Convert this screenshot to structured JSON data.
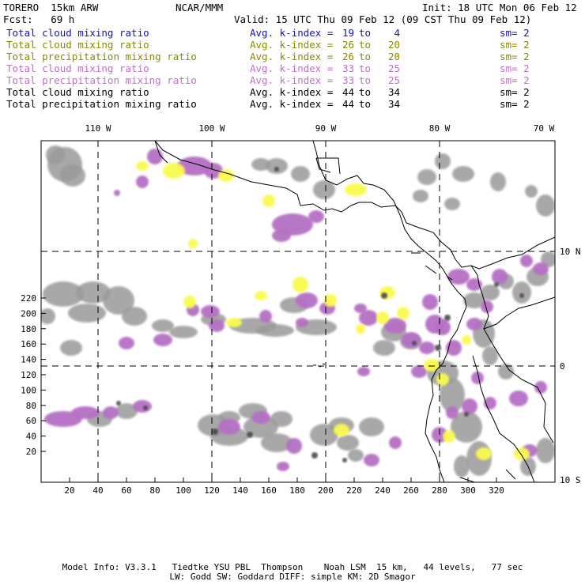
{
  "header": {
    "model": "TORERO  15km ARW",
    "center": "NCAR/MMM",
    "init": "Init: 18 UTC Mon 06 Feb 12",
    "fcst": "Fcst:   69 h",
    "valid": "Valid: 15 UTC Thu 09 Feb 12 (09 CST Thu 09 Feb 12)"
  },
  "legend": [
    {
      "name": "Total cloud mixing ratio",
      "avg": "Avg. k-index =",
      "hi": "19",
      "to": "to",
      "lo": "4",
      "sm": "sm= 2",
      "color": "#1010c8"
    },
    {
      "name": "Total cloud mixing ratio",
      "avg": "Avg. k-index =",
      "hi": "26",
      "to": "to",
      "lo": "20",
      "sm": "sm= 2",
      "color": "#8a8a00"
    },
    {
      "name": "Total precipitation mixing ratio",
      "avg": "Avg. k-index =",
      "hi": "26",
      "to": "to",
      "lo": "20",
      "sm": "sm= 2",
      "color": "#8a8a00"
    },
    {
      "name": "Total cloud mixing ratio",
      "avg": "Avg. k-index =",
      "hi": "33",
      "to": "to",
      "lo": "25",
      "sm": "sm= 2",
      "color": "#c070c8"
    },
    {
      "name": "Total precipitation mixing ratio",
      "avg": "Avg. k-index =",
      "hi": "33",
      "to": "to",
      "lo": "25",
      "sm": "sm= 2",
      "color": "#c070c8"
    },
    {
      "name": "Total cloud mixing ratio",
      "avg": "Avg. k-index =",
      "hi": "44",
      "to": "to",
      "lo": "34",
      "sm": "sm= 2",
      "color": "#000000"
    },
    {
      "name": "Total precipitation mixing ratio",
      "avg": "Avg. k-index =",
      "hi": "44",
      "to": "to",
      "lo": "34",
      "sm": "sm= 2",
      "color": "#000000"
    }
  ],
  "map": {
    "grid_x_ticks": [
      "20",
      "40",
      "60",
      "80",
      "100",
      "120",
      "140",
      "160",
      "180",
      "200",
      "220",
      "240",
      "260",
      "280",
      "300",
      "320"
    ],
    "grid_y_ticks": [
      "20",
      "40",
      "60",
      "80",
      "100",
      "120",
      "140",
      "160",
      "180",
      "200",
      "220"
    ],
    "lon_labels": [
      "110 W",
      "100 W",
      "90 W",
      "80 W",
      "70 W"
    ],
    "lat_labels": [
      "10 N",
      "0",
      "10 S"
    ],
    "colors": {
      "gray": "#9a9a9a",
      "dark": "#444444",
      "purple": "#b56fc4",
      "yellow": "#fafa50"
    }
  },
  "footer": {
    "line1": "Model Info: V3.3.1   Tiedtke YSU PBL  Thompson    Noah LSM  15 km,   44 levels,   77 sec",
    "line2": "LW: Godd SW: Goddard DIFF: simple KM: 2D Smagor"
  }
}
